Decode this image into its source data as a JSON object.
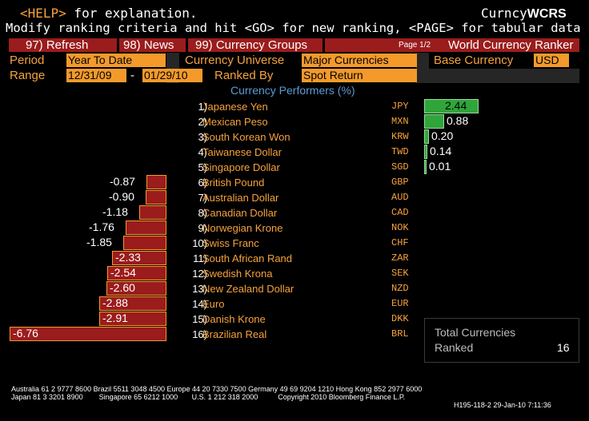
{
  "header": {
    "help_key": "<HELP>",
    "help_text": " for explanation.",
    "instructions": "Modify ranking criteria and hit <GO> for new ranking, <PAGE> for tabular data",
    "function_prefix": "Curncy",
    "function_code": "WCRS"
  },
  "toolbar": {
    "refresh": "97) Refresh",
    "news": "98) News",
    "groups": "99) Currency Groups",
    "page": "Page 1/2",
    "title": "World Currency Ranker"
  },
  "criteria": {
    "period_label": "Period",
    "period_value": "Year To Date",
    "universe_label": "Currency Universe",
    "universe_value": "Major Currencies",
    "base_label": "Base Currency",
    "base_value": "USD",
    "range_label": "Range",
    "range_start": "12/31/09",
    "range_sep": "-",
    "range_end": "01/29/10",
    "ranked_by_label": "Ranked By",
    "ranked_by_value": "Spot Return"
  },
  "chart_title": "Currency Performers  (%)",
  "currencies": [
    {
      "rank": "1)",
      "name": "Japanese Yen",
      "code": "JPY",
      "value": 2.44,
      "label": "2.44"
    },
    {
      "rank": "2)",
      "name": "Mexican Peso",
      "code": "MXN",
      "value": 0.88,
      "label": "0.88"
    },
    {
      "rank": "3)",
      "name": "South Korean Won",
      "code": "KRW",
      "value": 0.2,
      "label": "0.20"
    },
    {
      "rank": "4)",
      "name": "Taiwanese Dollar",
      "code": "TWD",
      "value": 0.14,
      "label": "0.14"
    },
    {
      "rank": "5)",
      "name": "Singapore Dollar",
      "code": "SGD",
      "value": 0.01,
      "label": "0.01"
    },
    {
      "rank": "6)",
      "name": "British Pound",
      "code": "GBP",
      "value": -0.87,
      "label": "-0.87"
    },
    {
      "rank": "7)",
      "name": "Australian Dollar",
      "code": "AUD",
      "value": -0.9,
      "label": "-0.90"
    },
    {
      "rank": "8)",
      "name": "Canadian Dollar",
      "code": "CAD",
      "value": -1.18,
      "label": "-1.18"
    },
    {
      "rank": "9)",
      "name": "Norwegian Krone",
      "code": "NOK",
      "value": -1.76,
      "label": "-1.76"
    },
    {
      "rank": "10)",
      "name": "Swiss Franc",
      "code": "CHF",
      "value": -1.85,
      "label": "-1.85"
    },
    {
      "rank": "11)",
      "name": "South African Rand",
      "code": "ZAR",
      "value": -2.33,
      "label": "-2.33"
    },
    {
      "rank": "12)",
      "name": "Swedish Krona",
      "code": "SEK",
      "value": -2.54,
      "label": "-2.54"
    },
    {
      "rank": "13)",
      "name": "New Zealand Dollar",
      "code": "NZD",
      "value": -2.6,
      "label": "-2.60"
    },
    {
      "rank": "14)",
      "name": "Euro",
      "code": "EUR",
      "value": -2.88,
      "label": "-2.88"
    },
    {
      "rank": "15)",
      "name": "Danish Krone",
      "code": "DKK",
      "value": -2.91,
      "label": "-2.91"
    },
    {
      "rank": "16)",
      "name": "Brazilian Real",
      "code": "BRL",
      "value": -6.76,
      "label": "-6.76"
    }
  ],
  "summary": {
    "label_line1": "Total Currencies",
    "label_line2": "Ranked",
    "count": "16"
  },
  "footer": {
    "line1": "Australia 61 2 9777 8600 Brazil 5511 3048 4500 Europe 44 20 7330 7500 Germany 49 69 9204 1210 Hong Kong 852 2977 6000",
    "line2a": "Japan 81 3 3201 8900        Singapore 65 6212 1000       U.S. 1 212 318 2000          Copyright 2010 Bloomberg Finance L.P.",
    "line3": "H195-118-2 29-Jan-10  7:11:36"
  },
  "colors": {
    "negative_bar": "#9b1c1c",
    "positive_bar": "#2fa53a",
    "amber": "#f7a23c",
    "blue_title": "#5d9bd8"
  }
}
